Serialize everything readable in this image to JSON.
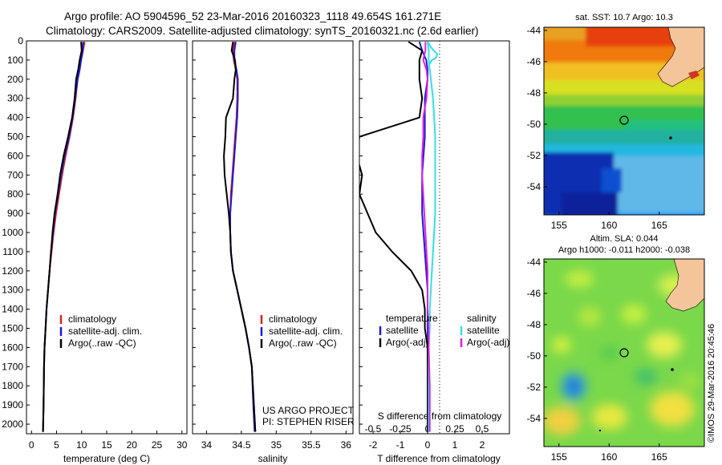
{
  "header": {
    "line1": "Argo profile: AO 5904596_52 23-Mar-2016 20160323_1118 49.654S 161.271E",
    "line2": "Climatology: CARS2009. Satellite-adjusted climatology: synTS_20160321.nc (2.6d earlier)"
  },
  "colors": {
    "climatology": "#e02020",
    "satellite": "#1a1adb",
    "argo": "#000000",
    "sat_salinity": "#30e0e8",
    "argo_salinity": "#e020e0"
  },
  "chart_data": [
    {
      "type": "line",
      "panel": "temperature",
      "xlabel": "temperature (deg C)",
      "ylabel": "",
      "xlim": [
        -1,
        31
      ],
      "ylim": [
        2050,
        0
      ],
      "xticks": [
        "0",
        "5",
        "10",
        "15",
        "20",
        "25",
        "30"
      ],
      "xtick_values": [
        0,
        5,
        10,
        15,
        20,
        25,
        30
      ],
      "yticks": [
        "0",
        "100",
        "200",
        "300",
        "400",
        "500",
        "600",
        "700",
        "800",
        "900",
        "1000",
        "1100",
        "1200",
        "1300",
        "1400",
        "1500",
        "1600",
        "1700",
        "1800",
        "1900",
        "2000"
      ],
      "ytick_values": [
        0,
        100,
        200,
        300,
        400,
        500,
        600,
        700,
        800,
        900,
        1000,
        1100,
        1200,
        1300,
        1400,
        1500,
        1600,
        1700,
        1800,
        1900,
        2000
      ],
      "legend": [
        "climatology",
        "satellite-adj. clim.",
        "Argo(..raw -QC)"
      ],
      "series": [
        {
          "name": "climatology",
          "color": "#e02020",
          "x": [
            10.6,
            10.3,
            9.9,
            9.6,
            9.2,
            8.8,
            8.3,
            7.6,
            6.8,
            6.1,
            5.5,
            4.9,
            4.4,
            4.0,
            3.6,
            3.3,
            3.0,
            2.8,
            2.6,
            2.5,
            2.4,
            2.3
          ],
          "y": [
            5,
            50,
            100,
            150,
            200,
            300,
            400,
            500,
            600,
            700,
            800,
            900,
            1000,
            1100,
            1200,
            1300,
            1400,
            1500,
            1600,
            1700,
            1900,
            2040
          ]
        },
        {
          "name": "satellite-adj. clim.",
          "color": "#1a1adb",
          "x": [
            10.3,
            10.2,
            9.9,
            9.6,
            9.2,
            8.7,
            8.2,
            7.5,
            6.6,
            5.9,
            5.3,
            4.7,
            4.3,
            3.9,
            3.6,
            3.3,
            3.0,
            2.8,
            2.6,
            2.5,
            2.4,
            2.3
          ],
          "y": [
            5,
            50,
            100,
            150,
            200,
            300,
            400,
            500,
            600,
            700,
            800,
            900,
            1000,
            1100,
            1200,
            1300,
            1400,
            1500,
            1600,
            1700,
            1900,
            2040
          ]
        },
        {
          "name": "Argo(..raw -QC)",
          "color": "#000000",
          "x": [
            9.9,
            10.0,
            9.6,
            9.3,
            8.9,
            8.6,
            8.1,
            7.3,
            6.4,
            5.7,
            5.2,
            4.6,
            4.2,
            3.9,
            3.6,
            3.3,
            3.0,
            2.8,
            2.6,
            2.5,
            2.4,
            2.3
          ],
          "y": [
            5,
            50,
            100,
            150,
            200,
            300,
            400,
            500,
            600,
            700,
            800,
            900,
            1000,
            1100,
            1200,
            1300,
            1400,
            1500,
            1600,
            1700,
            1900,
            2040
          ]
        }
      ]
    },
    {
      "type": "line",
      "panel": "salinity",
      "xlabel": "salinity",
      "xlim": [
        33.8,
        36.1
      ],
      "ylim": [
        2050,
        0
      ],
      "xticks": [
        "34",
        "34.5",
        "35",
        "35.5",
        "36"
      ],
      "xtick_values": [
        34,
        34.5,
        35,
        35.5,
        36
      ],
      "legend": [
        "climatology",
        "satellite-adj. clim.",
        "Argo(..raw -QC)"
      ],
      "annotation": [
        "US ARGO PROJECT",
        "PI: STEPHEN RISER"
      ],
      "series": [
        {
          "name": "climatology",
          "color": "#e02020",
          "x": [
            34.4,
            34.38,
            34.39,
            34.42,
            34.44,
            34.44,
            34.43,
            34.41,
            34.39,
            34.37,
            34.35,
            34.34,
            34.34,
            34.35,
            34.38,
            34.44,
            34.5,
            34.56,
            34.61,
            34.65,
            34.68,
            34.7
          ],
          "y": [
            5,
            50,
            100,
            150,
            200,
            300,
            400,
            500,
            600,
            700,
            800,
            900,
            1000,
            1100,
            1200,
            1300,
            1400,
            1500,
            1600,
            1700,
            1900,
            2040
          ]
        },
        {
          "name": "satellite-adj. clim.",
          "color": "#1a1adb",
          "x": [
            34.42,
            34.4,
            34.4,
            34.43,
            34.45,
            34.45,
            34.44,
            34.42,
            34.4,
            34.38,
            34.36,
            34.34,
            34.34,
            34.35,
            34.38,
            34.44,
            34.5,
            34.56,
            34.61,
            34.65,
            34.67,
            34.69
          ],
          "y": [
            5,
            50,
            100,
            150,
            200,
            300,
            400,
            500,
            600,
            700,
            800,
            900,
            1000,
            1100,
            1200,
            1300,
            1400,
            1500,
            1600,
            1700,
            1900,
            2040
          ]
        },
        {
          "name": "Argo(..raw -QC)",
          "color": "#000000",
          "x": [
            34.38,
            34.36,
            34.41,
            34.42,
            34.4,
            34.38,
            34.28,
            34.27,
            34.25,
            34.26,
            34.29,
            34.32,
            34.34,
            34.35,
            34.38,
            34.44,
            34.5,
            34.56,
            34.61,
            34.65,
            34.68,
            34.7
          ],
          "y": [
            5,
            50,
            100,
            150,
            200,
            300,
            400,
            500,
            600,
            700,
            800,
            900,
            1000,
            1100,
            1200,
            1300,
            1400,
            1500,
            1600,
            1700,
            1900,
            2040
          ]
        }
      ]
    },
    {
      "type": "line",
      "panel": "difference",
      "xlabel": "T difference from climatology",
      "top_label": "S difference from climatology",
      "xlim": [
        -2.5,
        3
      ],
      "ylim": [
        2050,
        0
      ],
      "xticks": [
        "-2",
        "-1",
        "0",
        "1",
        "2"
      ],
      "xtick_values": [
        -2,
        -1,
        0,
        1,
        2
      ],
      "top_ticks": [
        "-0.5",
        "-0.25",
        "0",
        "0.25",
        "0.5"
      ],
      "top_tick_values": [
        -0.5,
        -0.25,
        0,
        0.25,
        0.5
      ],
      "legend_temperature": [
        "temperature",
        "satellite",
        "Argo(-adj)"
      ],
      "legend_salinity": [
        "salinity",
        "satellite",
        "Argo(-adj)"
      ],
      "series": [
        {
          "name": "satellite",
          "group": "temperature",
          "color": "#1a1adb",
          "axis": "T",
          "x": [
            -0.3,
            -0.2,
            -0.05,
            0.0,
            0.0,
            -0.1,
            -0.1,
            -0.1,
            -0.15,
            -0.2,
            -0.2,
            -0.2,
            -0.15,
            -0.1,
            -0.05,
            0.0,
            0.0,
            0.0,
            0.0,
            0.0,
            0.0
          ],
          "y": [
            5,
            50,
            100,
            150,
            200,
            300,
            400,
            500,
            600,
            700,
            800,
            900,
            1000,
            1100,
            1200,
            1300,
            1400,
            1500,
            1600,
            1800,
            2040
          ]
        },
        {
          "name": "Argo(-adj)",
          "group": "temperature",
          "color": "#000000",
          "axis": "T",
          "x": [
            -0.7,
            -0.2,
            -0.3,
            -0.3,
            -0.3,
            -0.2,
            -0.3,
            -2.5,
            -2.6,
            -2.4,
            -2.5,
            -2.2,
            -1.9,
            -1.3,
            -0.6,
            -0.2,
            -0.1,
            -0.1,
            0.0,
            0.0,
            0.0
          ],
          "y": [
            5,
            50,
            100,
            150,
            200,
            300,
            400,
            500,
            600,
            700,
            800,
            900,
            1000,
            1100,
            1200,
            1300,
            1400,
            1500,
            1600,
            1800,
            2040
          ]
        },
        {
          "name": "satellite",
          "group": "salinity",
          "color": "#30e0e8",
          "axis": "S",
          "x": [
            0.0,
            0.01,
            0.01,
            0.02,
            0.03,
            0.05,
            0.06,
            0.07,
            0.07,
            0.07,
            0.07,
            0.07,
            0.06,
            0.05,
            0.04,
            0.03,
            0.02,
            0.02,
            0.01,
            0.01,
            0.01
          ],
          "y": [
            5,
            50,
            100,
            150,
            200,
            300,
            400,
            500,
            600,
            700,
            800,
            900,
            1000,
            1100,
            1200,
            1300,
            1400,
            1500,
            1600,
            1800,
            2040
          ]
        },
        {
          "name": "Argo(-adj)",
          "group": "salinity",
          "color": "#e020e0",
          "axis": "S",
          "x": [
            -0.02,
            -0.02,
            -0.04,
            -0.01,
            0.0,
            -0.01,
            -0.04,
            -0.04,
            -0.05,
            -0.05,
            -0.04,
            -0.03,
            -0.02,
            -0.01,
            0.0,
            0.0,
            0.0,
            0.01,
            0.01,
            0.02,
            0.02
          ],
          "y": [
            5,
            50,
            100,
            150,
            200,
            300,
            400,
            500,
            600,
            700,
            800,
            900,
            1000,
            1100,
            1200,
            1300,
            1400,
            1500,
            1600,
            1800,
            2040
          ]
        },
        {
          "name": "",
          "group": "salinity",
          "color": "#30e0e8",
          "axis": "S",
          "x": [
            0.0,
            0.04,
            0.09,
            0.08,
            0.06,
            0.04,
            0.03,
            0.02
          ],
          "y": [
            5,
            40,
            70,
            85,
            95,
            100,
            110,
            120
          ]
        }
      ]
    }
  ],
  "maps": {
    "sst": {
      "title": "sat. SST: 10.7 Argo: 10.3",
      "yticks": [
        "-44",
        "-46",
        "-48",
        "-50",
        "-52",
        "-54"
      ],
      "ytick_values": [
        -44,
        -46,
        -48,
        -50,
        -52,
        -54
      ],
      "xticks": [
        "155",
        "160",
        "165"
      ],
      "xtick_values": [
        155,
        160,
        165
      ],
      "xlim": [
        153.5,
        169.5
      ],
      "ylim": [
        -55.8,
        -43.8
      ],
      "float_position": {
        "lon": 161.271,
        "lat": -49.654
      }
    },
    "sla": {
      "title1": "Altim. SLA: 0.044",
      "title2": "Argo h1000: -0.011 h2000: -0.038",
      "yticks": [
        "-44",
        "-46",
        "-48",
        "-50",
        "-52",
        "-54"
      ],
      "ytick_values": [
        -44,
        -46,
        -48,
        -50,
        -52,
        -54
      ],
      "xticks": [
        "155",
        "160",
        "165"
      ],
      "xtick_values": [
        155,
        160,
        165
      ],
      "xlim": [
        153.5,
        169.5
      ],
      "ylim": [
        -55.8,
        -43.8
      ],
      "float_position": {
        "lon": 161.271,
        "lat": -49.654
      }
    },
    "credit": "©IMOS 29-Mar-2016 20:45:46"
  }
}
